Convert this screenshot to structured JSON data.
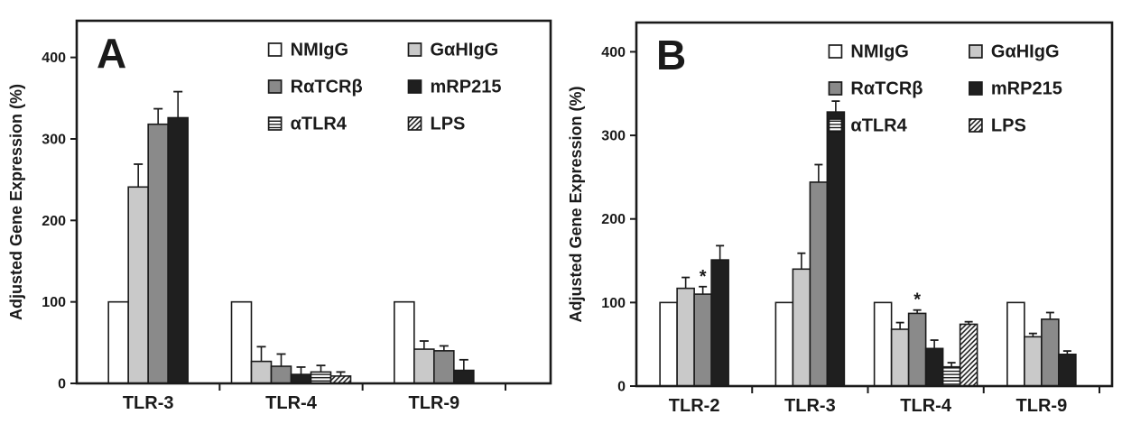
{
  "figure": {
    "background": "#ffffff",
    "panels": [
      "A",
      "B"
    ]
  },
  "colors": {
    "axis": "#1a1a1a",
    "bar_outline": "#1a1a1a",
    "white": "#ffffff",
    "lightgray": "#c9c9c9",
    "gray": "#8a8a8a",
    "black": "#1f1f1f"
  },
  "legend": {
    "position": "top-right-inside",
    "columns": 2,
    "items": [
      {
        "label": "NMIgG",
        "style": "white"
      },
      {
        "label": "GαHIgG",
        "style": "lightgray"
      },
      {
        "label": "RαTCRβ",
        "style": "gray"
      },
      {
        "label": "mRP215",
        "style": "black"
      },
      {
        "label": "αTLR4",
        "style": "hstripe"
      },
      {
        "label": "LPS",
        "style": "diag"
      }
    ]
  },
  "chart_data": [
    {
      "type": "bar",
      "panel_label": "A",
      "title": "",
      "xlabel": "",
      "ylabel": "Adjusted Gene Expression (%)",
      "ylim": [
        0,
        445
      ],
      "yticks": [
        0,
        100,
        200,
        300,
        400
      ],
      "grid": false,
      "categories": [
        "TLR-3",
        "TLR-4",
        "TLR-9"
      ],
      "series": [
        "NMIgG",
        "GαHIgG",
        "RαTCRβ",
        "mRP215",
        "αTLR4",
        "LPS"
      ],
      "groups": [
        {
          "category": "TLR-3",
          "bars": [
            {
              "series": "NMIgG",
              "style": "white",
              "value": 100
            },
            {
              "series": "GαHIgG",
              "style": "lightgray",
              "value": 241,
              "err": 28
            },
            {
              "series": "RαTCRβ",
              "style": "gray",
              "value": 318,
              "err": 19
            },
            {
              "series": "mRP215",
              "style": "black",
              "value": 326,
              "err": 32
            }
          ]
        },
        {
          "category": "TLR-4",
          "bars": [
            {
              "series": "NMIgG",
              "style": "white",
              "value": 100
            },
            {
              "series": "GαHIgG",
              "style": "lightgray",
              "value": 27,
              "err": 18
            },
            {
              "series": "RαTCRβ",
              "style": "gray",
              "value": 21,
              "err": 15
            },
            {
              "series": "mRP215",
              "style": "black",
              "value": 11,
              "err": 9
            },
            {
              "series": "αTLR4",
              "style": "hstripe",
              "value": 14,
              "err": 8
            },
            {
              "series": "LPS",
              "style": "diag",
              "value": 9,
              "err": 5
            }
          ]
        },
        {
          "category": "TLR-9",
          "bars": [
            {
              "series": "NMIgG",
              "style": "white",
              "value": 100
            },
            {
              "series": "GαHIgG",
              "style": "lightgray",
              "value": 42,
              "err": 10
            },
            {
              "series": "RαTCRβ",
              "style": "gray",
              "value": 40,
              "err": 6
            },
            {
              "series": "mRP215",
              "style": "black",
              "value": 16,
              "err": 13
            }
          ]
        }
      ]
    },
    {
      "type": "bar",
      "panel_label": "B",
      "title": "",
      "xlabel": "",
      "ylabel": "Adjusted Gene Expression (%)",
      "ylim": [
        0,
        435
      ],
      "yticks": [
        0,
        100,
        200,
        300,
        400
      ],
      "grid": false,
      "categories": [
        "TLR-2",
        "TLR-3",
        "TLR-4",
        "TLR-9"
      ],
      "series": [
        "NMIgG",
        "GαHIgG",
        "RαTCRβ",
        "mRP215",
        "αTLR4",
        "LPS"
      ],
      "groups": [
        {
          "category": "TLR-2",
          "bars": [
            {
              "series": "NMIgG",
              "style": "white",
              "value": 100
            },
            {
              "series": "GαHIgG",
              "style": "lightgray",
              "value": 117,
              "err": 13
            },
            {
              "series": "RαTCRβ",
              "style": "gray",
              "value": 110,
              "err": 9,
              "star": true
            },
            {
              "series": "mRP215",
              "style": "black",
              "value": 151,
              "err": 17
            }
          ]
        },
        {
          "category": "TLR-3",
          "bars": [
            {
              "series": "NMIgG",
              "style": "white",
              "value": 100
            },
            {
              "series": "GαHIgG",
              "style": "lightgray",
              "value": 140,
              "err": 19
            },
            {
              "series": "RαTCRβ",
              "style": "gray",
              "value": 244,
              "err": 21
            },
            {
              "series": "mRP215",
              "style": "black",
              "value": 328,
              "err": 13
            }
          ]
        },
        {
          "category": "TLR-4",
          "bars": [
            {
              "series": "NMIgG",
              "style": "white",
              "value": 100
            },
            {
              "series": "GαHIgG",
              "style": "lightgray",
              "value": 68,
              "err": 8
            },
            {
              "series": "RαTCRβ",
              "style": "gray",
              "value": 87,
              "err": 4,
              "star": true
            },
            {
              "series": "mRP215",
              "style": "black",
              "value": 45,
              "err": 10
            },
            {
              "series": "αTLR4",
              "style": "hstripe",
              "value": 23,
              "err": 5
            },
            {
              "series": "LPS",
              "style": "diag",
              "value": 74,
              "err": 3
            }
          ]
        },
        {
          "category": "TLR-9",
          "bars": [
            {
              "series": "NMIgG",
              "style": "white",
              "value": 100
            },
            {
              "series": "GαHIgG",
              "style": "lightgray",
              "value": 59,
              "err": 4
            },
            {
              "series": "RαTCRβ",
              "style": "gray",
              "value": 80,
              "err": 8
            },
            {
              "series": "mRP215",
              "style": "black",
              "value": 38,
              "err": 4
            }
          ]
        }
      ]
    }
  ]
}
